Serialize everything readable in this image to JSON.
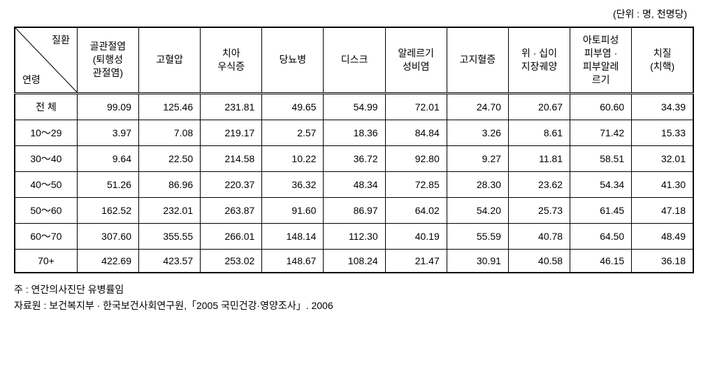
{
  "unit_label": "(단위 : 명, 천명당)",
  "header": {
    "diag_top": "질환",
    "diag_bottom": "연령",
    "columns": [
      "골관절염\n(퇴행성\n관절염)",
      "고혈압",
      "치아\n우식증",
      "당뇨병",
      "디스크",
      "알레르기\n성비염",
      "고지혈증",
      "위 · 십이\n지장궤양",
      "아토피성\n피부염 ·\n피부알레\n르기",
      "치질\n(치핵)"
    ]
  },
  "rows": [
    {
      "label": "전 체",
      "values": [
        "99.09",
        "125.46",
        "231.81",
        "49.65",
        "54.99",
        "72.01",
        "24.70",
        "20.67",
        "60.60",
        "34.39"
      ]
    },
    {
      "label": "10～29",
      "values": [
        "3.97",
        "7.08",
        "219.17",
        "2.57",
        "18.36",
        "84.84",
        "3.26",
        "8.61",
        "71.42",
        "15.33"
      ]
    },
    {
      "label": "30～40",
      "values": [
        "9.64",
        "22.50",
        "214.58",
        "10.22",
        "36.72",
        "92.80",
        "9.27",
        "11.81",
        "58.51",
        "32.01"
      ]
    },
    {
      "label": "40～50",
      "values": [
        "51.26",
        "86.96",
        "220.37",
        "36.32",
        "48.34",
        "72.85",
        "28.30",
        "23.62",
        "54.34",
        "41.30"
      ]
    },
    {
      "label": "50～60",
      "values": [
        "162.52",
        "232.01",
        "263.87",
        "91.60",
        "86.97",
        "64.02",
        "54.20",
        "25.73",
        "61.45",
        "47.18"
      ]
    },
    {
      "label": "60～70",
      "values": [
        "307.60",
        "355.55",
        "266.01",
        "148.14",
        "112.30",
        "40.19",
        "55.59",
        "40.78",
        "64.50",
        "48.49"
      ]
    },
    {
      "label": "70+",
      "values": [
        "422.69",
        "423.57",
        "253.02",
        "148.67",
        "108.24",
        "21.47",
        "30.91",
        "40.58",
        "46.15",
        "36.18"
      ]
    }
  ],
  "footnotes": {
    "note": "주 : 연간의사진단 유병률임",
    "source": "자료원 : 보건복지부 · 한국보건사회연구원,「2005 국민건강·영양조사」. 2006"
  }
}
